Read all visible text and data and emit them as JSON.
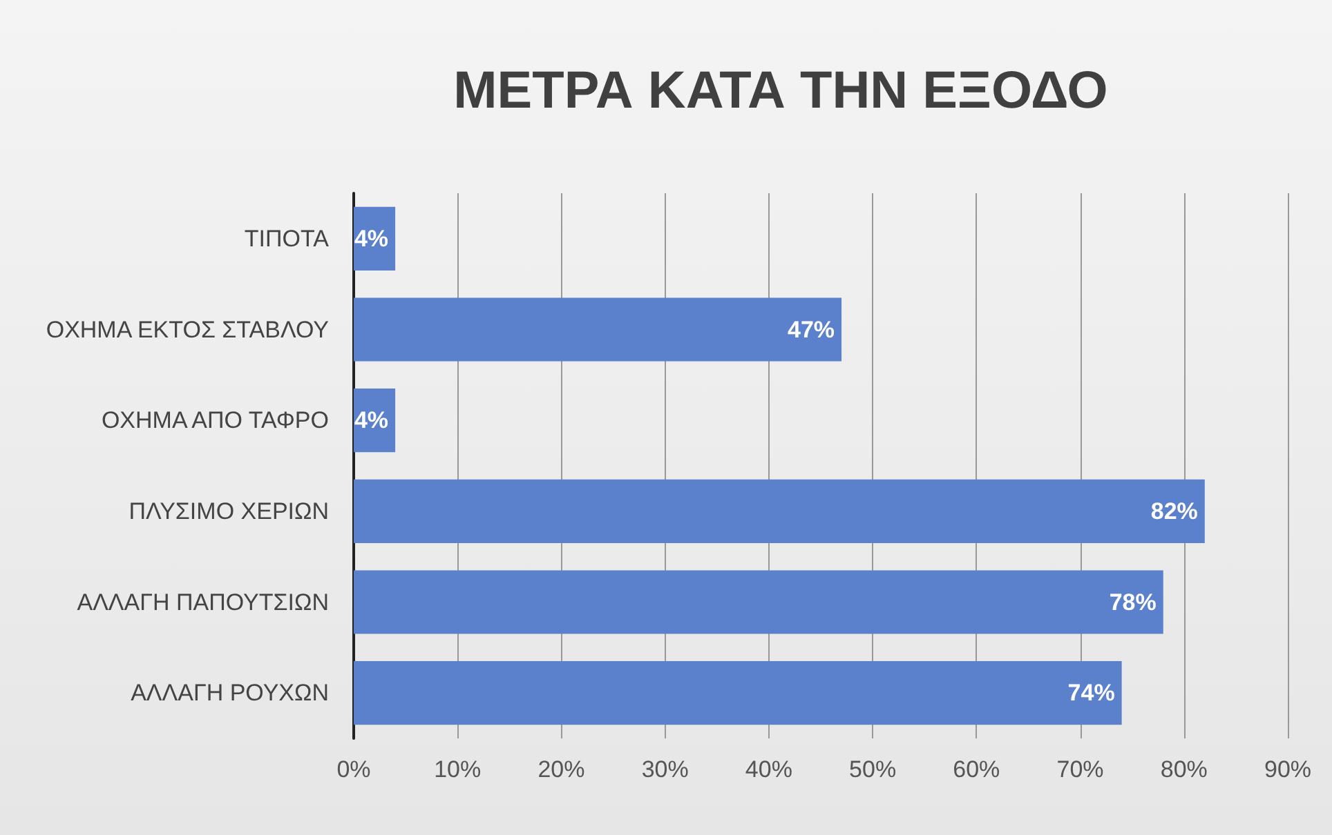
{
  "chart_data": {
    "type": "bar",
    "orientation": "horizontal",
    "title": "ΜΕΤΡΑ ΚΑΤΑ ΤΗΝ ΕΞΟΔΟ",
    "categories": [
      "ΤΙΠΟΤΑ",
      "ΟΧΗΜΑ ΕΚΤΟΣ ΣΤΑΒΛΟΥ",
      "ΟΧΗΜΑ ΑΠΟ ΤΑΦΡΟ",
      "ΠΛΥΣΙΜΟ ΧΕΡΙΩΝ",
      "ΑΛΛΑΓΗ ΠΑΠΟΥΤΣΙΩΝ",
      "ΑΛΛΑΓΗ ΡΟΥΧΩΝ"
    ],
    "values": [
      4,
      47,
      4,
      82,
      78,
      74
    ],
    "value_labels": [
      "4%",
      "47%",
      "4%",
      "82%",
      "78%",
      "74%"
    ],
    "color": "#5b80cc",
    "xlim": [
      0,
      90
    ],
    "xticks": [
      {
        "value": 0,
        "label": "0%"
      },
      {
        "value": 10,
        "label": "10%"
      },
      {
        "value": 20,
        "label": "20%"
      },
      {
        "value": 30,
        "label": "30%"
      },
      {
        "value": 40,
        "label": "40%"
      },
      {
        "value": 50,
        "label": "50%"
      },
      {
        "value": 60,
        "label": "60%"
      },
      {
        "value": 70,
        "label": "70%"
      },
      {
        "value": 80,
        "label": "80%"
      },
      {
        "value": 90,
        "label": "90%"
      }
    ],
    "grid": "x"
  }
}
